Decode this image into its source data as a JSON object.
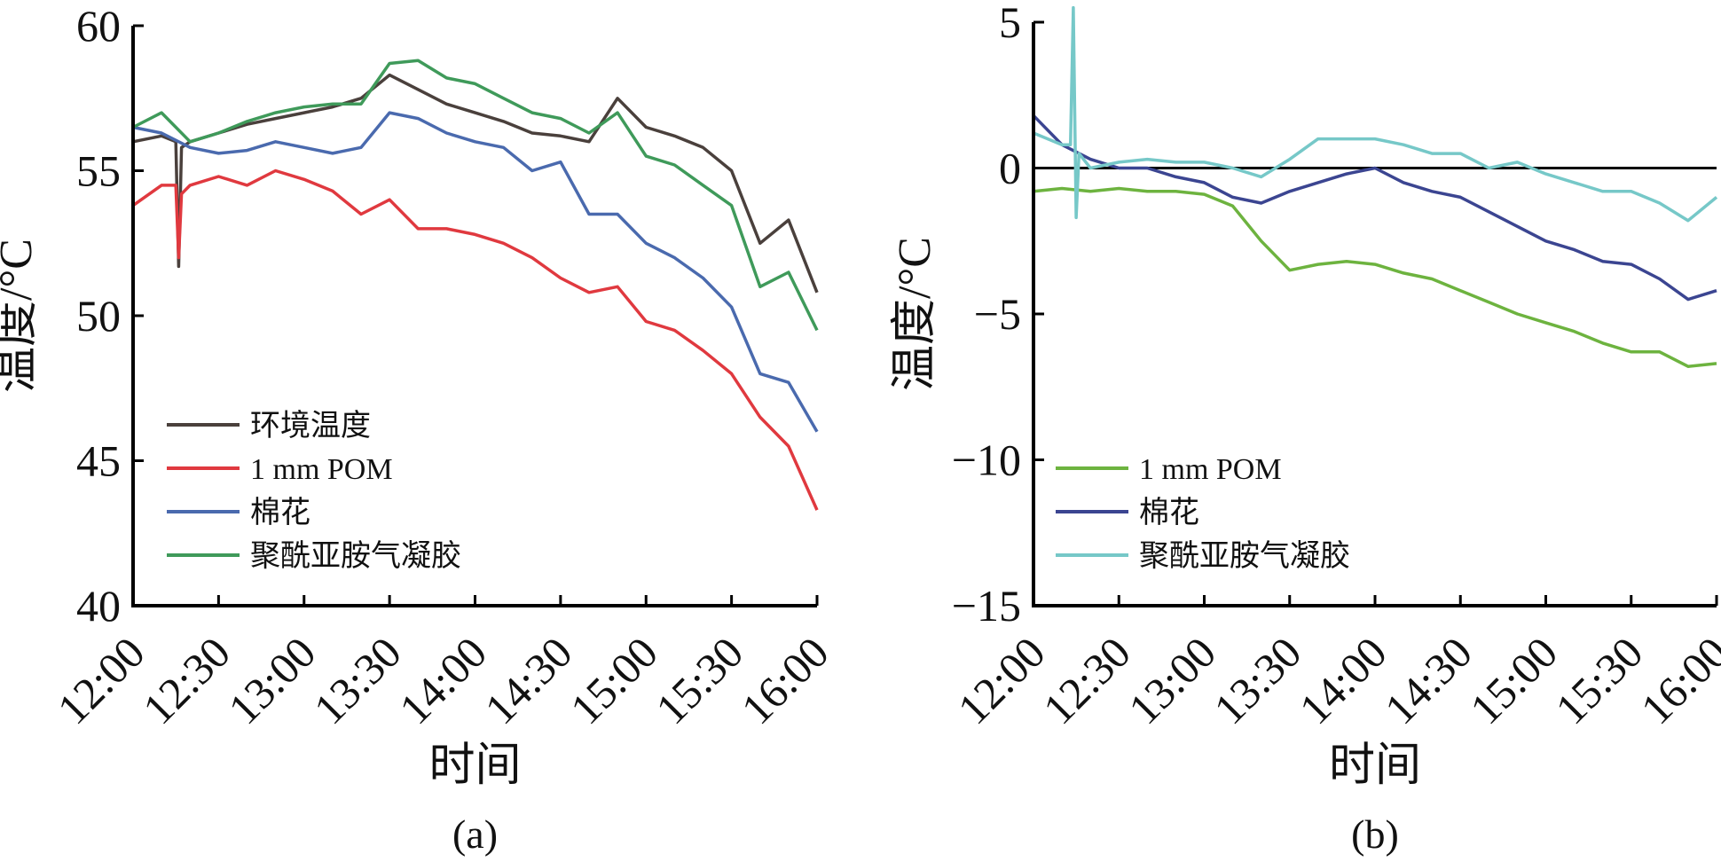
{
  "chart_data": [
    {
      "type": "line",
      "panel_label": "(a)",
      "xlabel": "时间",
      "ylabel": "温度/°C",
      "xlim": [
        "12:00",
        "16:00"
      ],
      "ylim": [
        40,
        60
      ],
      "x_ticks": [
        "12:00",
        "12:30",
        "13:00",
        "13:30",
        "14:00",
        "14:30",
        "15:00",
        "15:30",
        "16:00"
      ],
      "y_ticks": [
        40,
        45,
        50,
        55,
        60
      ],
      "legend_position": "bottom-left",
      "grid": false,
      "series": [
        {
          "name": "环境温度",
          "color": "#4a403c",
          "points": [
            [
              "12:00",
              56.0
            ],
            [
              "12:10",
              56.2
            ],
            [
              "12:15",
              56.0
            ],
            [
              "12:16",
              51.7
            ],
            [
              "12:17",
              55.8
            ],
            [
              "12:20",
              56.0
            ],
            [
              "12:30",
              56.3
            ],
            [
              "12:40",
              56.6
            ],
            [
              "12:50",
              56.8
            ],
            [
              "13:00",
              57.0
            ],
            [
              "13:10",
              57.2
            ],
            [
              "13:20",
              57.5
            ],
            [
              "13:30",
              58.3
            ],
            [
              "13:40",
              57.8
            ],
            [
              "13:50",
              57.3
            ],
            [
              "14:00",
              57.0
            ],
            [
              "14:10",
              56.7
            ],
            [
              "14:20",
              56.3
            ],
            [
              "14:30",
              56.2
            ],
            [
              "14:40",
              56.0
            ],
            [
              "14:50",
              57.5
            ],
            [
              "15:00",
              56.5
            ],
            [
              "15:10",
              56.2
            ],
            [
              "15:20",
              55.8
            ],
            [
              "15:30",
              55.0
            ],
            [
              "15:40",
              52.5
            ],
            [
              "15:50",
              53.3
            ],
            [
              "16:00",
              50.8
            ]
          ]
        },
        {
          "name": "1 mm POM",
          "color": "#e0393f",
          "points": [
            [
              "12:00",
              53.8
            ],
            [
              "12:10",
              54.5
            ],
            [
              "12:15",
              54.5
            ],
            [
              "12:16",
              52.0
            ],
            [
              "12:17",
              54.2
            ],
            [
              "12:20",
              54.5
            ],
            [
              "12:30",
              54.8
            ],
            [
              "12:40",
              54.5
            ],
            [
              "12:50",
              55.0
            ],
            [
              "13:00",
              54.7
            ],
            [
              "13:10",
              54.3
            ],
            [
              "13:20",
              53.5
            ],
            [
              "13:30",
              54.0
            ],
            [
              "13:40",
              53.0
            ],
            [
              "13:50",
              53.0
            ],
            [
              "14:00",
              52.8
            ],
            [
              "14:10",
              52.5
            ],
            [
              "14:20",
              52.0
            ],
            [
              "14:30",
              51.3
            ],
            [
              "14:40",
              50.8
            ],
            [
              "14:50",
              51.0
            ],
            [
              "15:00",
              49.8
            ],
            [
              "15:10",
              49.5
            ],
            [
              "15:20",
              48.8
            ],
            [
              "15:30",
              48.0
            ],
            [
              "15:40",
              46.5
            ],
            [
              "15:50",
              45.5
            ],
            [
              "16:00",
              43.3
            ]
          ]
        },
        {
          "name": "棉花",
          "color": "#4a6aae",
          "points": [
            [
              "12:00",
              56.5
            ],
            [
              "12:10",
              56.3
            ],
            [
              "12:20",
              55.8
            ],
            [
              "12:30",
              55.6
            ],
            [
              "12:40",
              55.7
            ],
            [
              "12:50",
              56.0
            ],
            [
              "13:00",
              55.8
            ],
            [
              "13:10",
              55.6
            ],
            [
              "13:20",
              55.8
            ],
            [
              "13:30",
              57.0
            ],
            [
              "13:40",
              56.8
            ],
            [
              "13:50",
              56.3
            ],
            [
              "14:00",
              56.0
            ],
            [
              "14:10",
              55.8
            ],
            [
              "14:20",
              55.0
            ],
            [
              "14:30",
              55.3
            ],
            [
              "14:40",
              53.5
            ],
            [
              "14:50",
              53.5
            ],
            [
              "15:00",
              52.5
            ],
            [
              "15:10",
              52.0
            ],
            [
              "15:20",
              51.3
            ],
            [
              "15:30",
              50.3
            ],
            [
              "15:40",
              48.0
            ],
            [
              "15:50",
              47.7
            ],
            [
              "16:00",
              46.0
            ]
          ]
        },
        {
          "name": "聚酰亚胺气凝胶",
          "color": "#3f9a5a",
          "points": [
            [
              "12:00",
              56.5
            ],
            [
              "12:10",
              57.0
            ],
            [
              "12:20",
              56.0
            ],
            [
              "12:30",
              56.3
            ],
            [
              "12:40",
              56.7
            ],
            [
              "12:50",
              57.0
            ],
            [
              "13:00",
              57.2
            ],
            [
              "13:10",
              57.3
            ],
            [
              "13:20",
              57.3
            ],
            [
              "13:30",
              58.7
            ],
            [
              "13:40",
              58.8
            ],
            [
              "13:50",
              58.2
            ],
            [
              "14:00",
              58.0
            ],
            [
              "14:10",
              57.5
            ],
            [
              "14:20",
              57.0
            ],
            [
              "14:30",
              56.8
            ],
            [
              "14:40",
              56.3
            ],
            [
              "14:50",
              57.0
            ],
            [
              "15:00",
              55.5
            ],
            [
              "15:10",
              55.2
            ],
            [
              "15:20",
              54.5
            ],
            [
              "15:30",
              53.8
            ],
            [
              "15:40",
              51.0
            ],
            [
              "15:50",
              51.5
            ],
            [
              "16:00",
              49.5
            ]
          ]
        }
      ]
    },
    {
      "type": "line",
      "panel_label": "(b)",
      "xlabel": "时间",
      "ylabel": "温度/°C",
      "xlim": [
        "12:00",
        "16:00"
      ],
      "ylim": [
        -15,
        5
      ],
      "x_ticks": [
        "12:00",
        "12:30",
        "13:00",
        "13:30",
        "14:00",
        "14:30",
        "15:00",
        "15:30",
        "16:00"
      ],
      "y_ticks": [
        -15,
        -10,
        -5,
        0,
        5
      ],
      "y_tick_labels": [
        "−15",
        "−10",
        "−5",
        "0",
        "5"
      ],
      "reference_line": 0,
      "legend_position": "bottom-left",
      "grid": false,
      "series": [
        {
          "name": "1 mm POM",
          "color": "#6db33f",
          "points": [
            [
              "12:00",
              -0.8
            ],
            [
              "12:10",
              -0.7
            ],
            [
              "12:20",
              -0.8
            ],
            [
              "12:30",
              -0.7
            ],
            [
              "12:40",
              -0.8
            ],
            [
              "12:50",
              -0.8
            ],
            [
              "13:00",
              -0.9
            ],
            [
              "13:10",
              -1.3
            ],
            [
              "13:20",
              -2.5
            ],
            [
              "13:30",
              -3.5
            ],
            [
              "13:40",
              -3.3
            ],
            [
              "13:50",
              -3.2
            ],
            [
              "14:00",
              -3.3
            ],
            [
              "14:10",
              -3.6
            ],
            [
              "14:20",
              -3.8
            ],
            [
              "14:30",
              -4.2
            ],
            [
              "14:40",
              -4.6
            ],
            [
              "14:50",
              -5.0
            ],
            [
              "15:00",
              -5.3
            ],
            [
              "15:10",
              -5.6
            ],
            [
              "15:20",
              -6.0
            ],
            [
              "15:30",
              -6.3
            ],
            [
              "15:40",
              -6.3
            ],
            [
              "15:50",
              -6.8
            ],
            [
              "16:00",
              -6.7
            ]
          ]
        },
        {
          "name": "棉花",
          "color": "#3b4591",
          "points": [
            [
              "12:00",
              1.8
            ],
            [
              "12:10",
              0.8
            ],
            [
              "12:20",
              0.3
            ],
            [
              "12:30",
              0.0
            ],
            [
              "12:40",
              0.0
            ],
            [
              "12:50",
              -0.3
            ],
            [
              "13:00",
              -0.5
            ],
            [
              "13:10",
              -1.0
            ],
            [
              "13:20",
              -1.2
            ],
            [
              "13:30",
              -0.8
            ],
            [
              "13:40",
              -0.5
            ],
            [
              "13:50",
              -0.2
            ],
            [
              "14:00",
              0.0
            ],
            [
              "14:10",
              -0.5
            ],
            [
              "14:20",
              -0.8
            ],
            [
              "14:30",
              -1.0
            ],
            [
              "14:40",
              -1.5
            ],
            [
              "14:50",
              -2.0
            ],
            [
              "15:00",
              -2.5
            ],
            [
              "15:10",
              -2.8
            ],
            [
              "15:20",
              -3.2
            ],
            [
              "15:30",
              -3.3
            ],
            [
              "15:40",
              -3.8
            ],
            [
              "15:50",
              -4.5
            ],
            [
              "16:00",
              -4.2
            ]
          ]
        },
        {
          "name": "聚酰亚胺气凝胶",
          "color": "#76c8c8",
          "points": [
            [
              "12:00",
              1.2
            ],
            [
              "12:10",
              0.8
            ],
            [
              "12:13",
              0.8
            ],
            [
              "12:14",
              5.5
            ],
            [
              "12:15",
              -1.7
            ],
            [
              "12:16",
              0.5
            ],
            [
              "12:20",
              0.0
            ],
            [
              "12:30",
              0.2
            ],
            [
              "12:40",
              0.3
            ],
            [
              "12:50",
              0.2
            ],
            [
              "13:00",
              0.2
            ],
            [
              "13:10",
              0.0
            ],
            [
              "13:20",
              -0.3
            ],
            [
              "13:30",
              0.3
            ],
            [
              "13:40",
              1.0
            ],
            [
              "13:50",
              1.0
            ],
            [
              "14:00",
              1.0
            ],
            [
              "14:10",
              0.8
            ],
            [
              "14:20",
              0.5
            ],
            [
              "14:30",
              0.5
            ],
            [
              "14:40",
              0.0
            ],
            [
              "14:50",
              0.2
            ],
            [
              "15:00",
              -0.2
            ],
            [
              "15:10",
              -0.5
            ],
            [
              "15:20",
              -0.8
            ],
            [
              "15:30",
              -0.8
            ],
            [
              "15:40",
              -1.2
            ],
            [
              "15:50",
              -1.8
            ],
            [
              "16:00",
              -1.0
            ]
          ]
        }
      ]
    }
  ]
}
